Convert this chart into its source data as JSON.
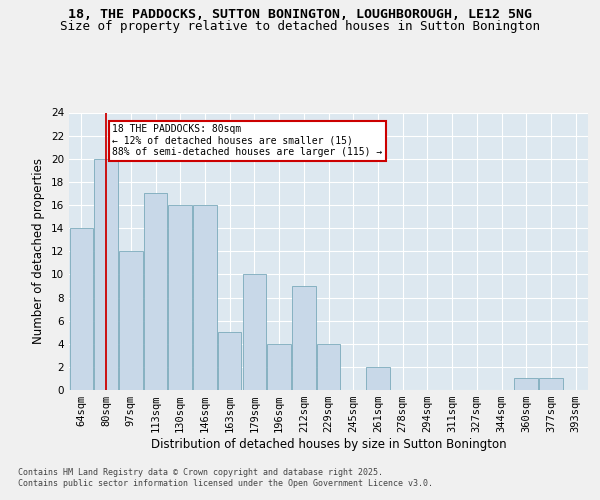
{
  "title_line1": "18, THE PADDOCKS, SUTTON BONINGTON, LOUGHBOROUGH, LE12 5NG",
  "title_line2": "Size of property relative to detached houses in Sutton Bonington",
  "xlabel": "Distribution of detached houses by size in Sutton Bonington",
  "ylabel": "Number of detached properties",
  "categories": [
    "64sqm",
    "80sqm",
    "97sqm",
    "113sqm",
    "130sqm",
    "146sqm",
    "163sqm",
    "179sqm",
    "196sqm",
    "212sqm",
    "229sqm",
    "245sqm",
    "261sqm",
    "278sqm",
    "294sqm",
    "311sqm",
    "327sqm",
    "344sqm",
    "360sqm",
    "377sqm",
    "393sqm"
  ],
  "values": [
    14,
    20,
    12,
    17,
    16,
    16,
    5,
    10,
    4,
    9,
    4,
    0,
    2,
    0,
    0,
    0,
    0,
    0,
    1,
    1,
    0
  ],
  "bar_color": "#c8d8e8",
  "bar_edge_color": "#7aaabb",
  "highlight_index": 1,
  "highlight_color": "#cc0000",
  "ylim": [
    0,
    24
  ],
  "yticks": [
    0,
    2,
    4,
    6,
    8,
    10,
    12,
    14,
    16,
    18,
    20,
    22,
    24
  ],
  "annotation_text": "18 THE PADDOCKS: 80sqm\n← 12% of detached houses are smaller (15)\n88% of semi-detached houses are larger (115) →",
  "annotation_box_color": "#ffffff",
  "annotation_box_edge": "#cc0000",
  "background_color": "#dde8f0",
  "fig_background_color": "#f0f0f0",
  "footer_text": "Contains HM Land Registry data © Crown copyright and database right 2025.\nContains public sector information licensed under the Open Government Licence v3.0.",
  "grid_color": "#ffffff",
  "title_fontsize": 9.5,
  "subtitle_fontsize": 9,
  "tick_fontsize": 7.5,
  "ylabel_fontsize": 8.5,
  "xlabel_fontsize": 8.5,
  "footer_fontsize": 6,
  "annotation_fontsize": 7
}
